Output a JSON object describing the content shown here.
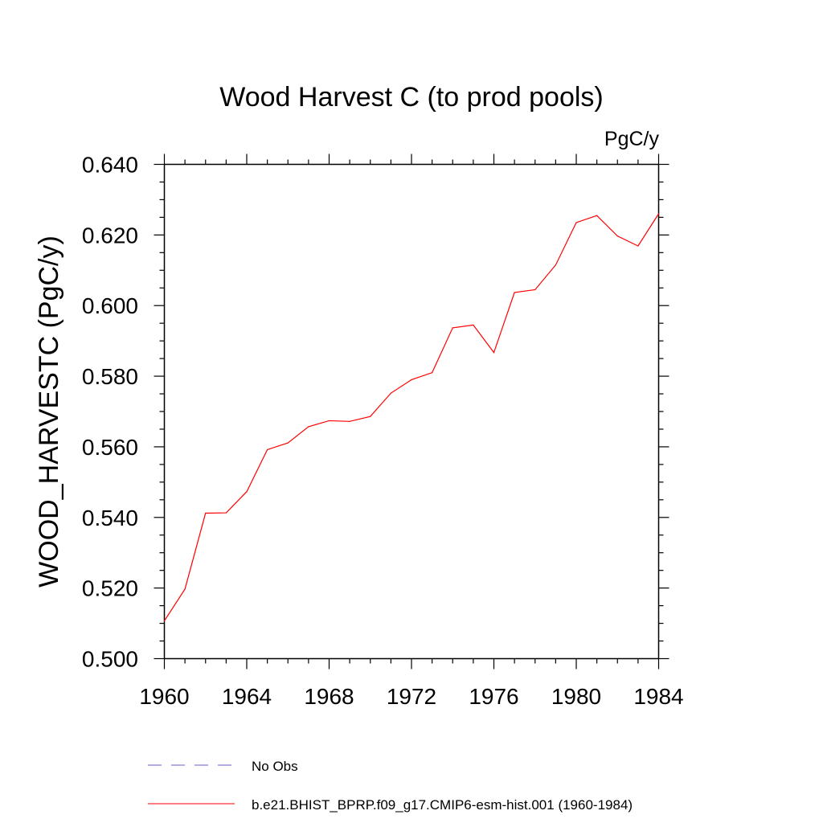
{
  "chart_data": {
    "type": "line",
    "title": "Wood Harvest C (to prod pools)",
    "units": "PgC/y",
    "xlabel": "",
    "ylabel": "WOOD_HARVESTC  (PgC/y)",
    "xlim": [
      1960,
      1984
    ],
    "ylim": [
      0.5,
      0.64
    ],
    "x_ticks": [
      "1960",
      "1964",
      "1968",
      "1972",
      "1976",
      "1980",
      "1984"
    ],
    "y_ticks": [
      "0.500",
      "0.520",
      "0.540",
      "0.560",
      "0.580",
      "0.600",
      "0.620",
      "0.640"
    ],
    "grid": false,
    "x": [
      1960,
      1961,
      1962,
      1963,
      1964,
      1965,
      1966,
      1967,
      1968,
      1969,
      1970,
      1971,
      1972,
      1973,
      1974,
      1975,
      1976,
      1977,
      1978,
      1979,
      1980,
      1981,
      1982,
      1983,
      1984
    ],
    "series": [
      {
        "name": "b.e21.BHIST_BPRP.f09_g17.CMIP6-esm-hist.001 (1960-1984)",
        "color": "#ff0000",
        "style": "solid",
        "values": [
          0.5107,
          0.5197,
          0.5412,
          0.5413,
          0.5473,
          0.5592,
          0.5611,
          0.5657,
          0.5674,
          0.5672,
          0.5686,
          0.5752,
          0.579,
          0.581,
          0.5937,
          0.5945,
          0.5867,
          0.6037,
          0.6045,
          0.6115,
          0.6235,
          0.6255,
          0.6197,
          0.6169,
          0.626
        ]
      }
    ],
    "legend": {
      "placement": "bottom",
      "entries": [
        {
          "label": "No Obs",
          "color": "#6a5acd",
          "style": "dashed"
        },
        {
          "label": "b.e21.BHIST_BPRP.f09_g17.CMIP6-esm-hist.001 (1960-1984)",
          "color": "#ff0000",
          "style": "solid"
        }
      ]
    }
  }
}
